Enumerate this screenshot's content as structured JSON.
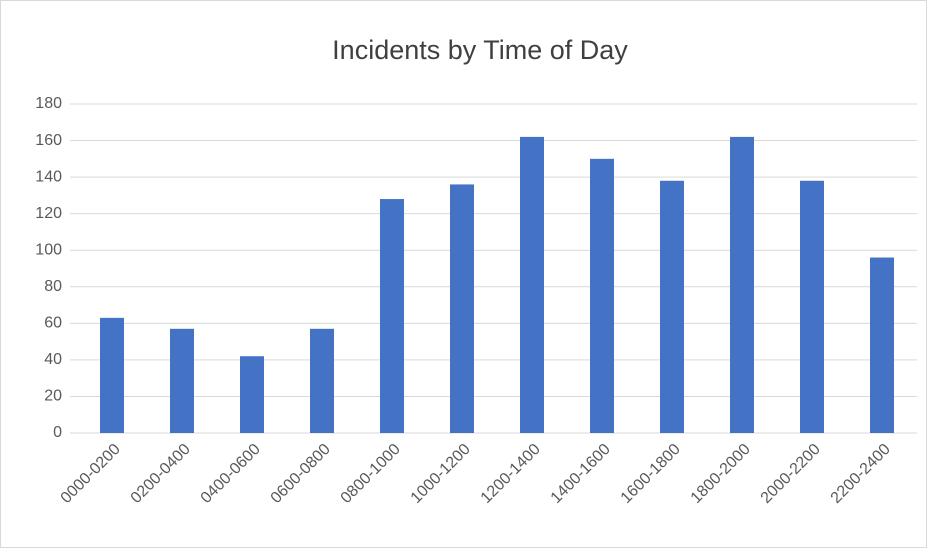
{
  "chart_data": {
    "type": "bar",
    "title": "Incidents by Time of Day",
    "categories": [
      "0000-0200",
      "0200-0400",
      "0400-0600",
      "0600-0800",
      "0800-1000",
      "1000-1200",
      "1200-1400",
      "1400-1600",
      "1600-1800",
      "1800-2000",
      "2000-2200",
      "2200-2400"
    ],
    "values": [
      63,
      57,
      42,
      57,
      128,
      136,
      162,
      150,
      138,
      162,
      138,
      96
    ],
    "color": "#4472c4",
    "ylim": [
      0,
      180
    ],
    "yticks": [
      0,
      20,
      40,
      60,
      80,
      100,
      120,
      140,
      160,
      180
    ],
    "grid": true
  }
}
